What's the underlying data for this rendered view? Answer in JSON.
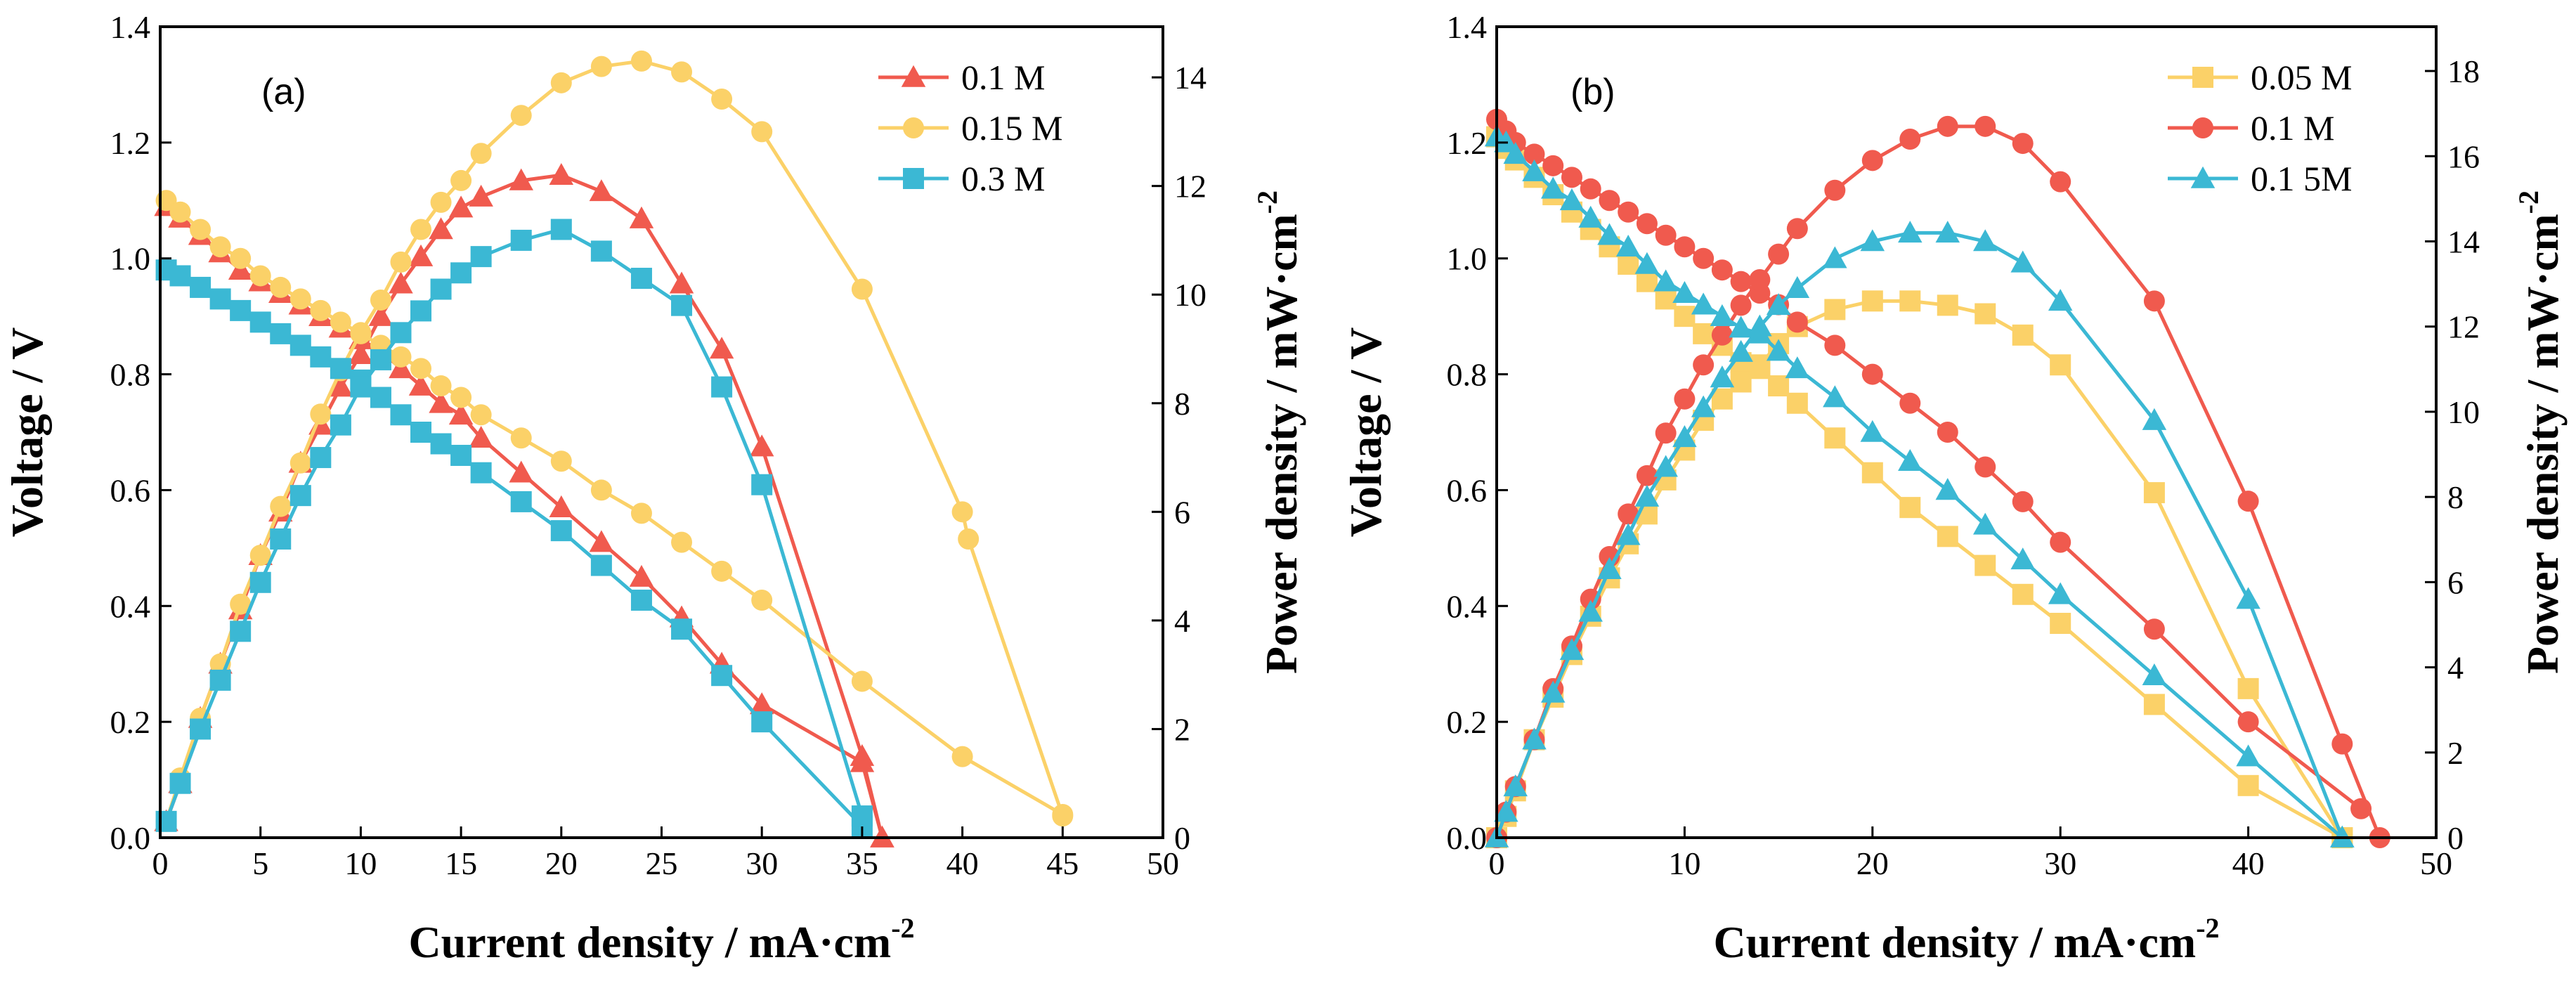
{
  "chart_data": [
    {
      "type": "line",
      "panel_label": "(a)",
      "xlabel": "Current density / mA·cm",
      "xlabel_sup": "-2",
      "ylabel": "Voltage / V",
      "y2label": "Power density / mW·cm",
      "y2label_sup": "-2",
      "xlim": [
        0,
        50
      ],
      "ylim": [
        0,
        1.4
      ],
      "y2lim": [
        0,
        14.933
      ],
      "x_ticks": [
        "0",
        "5",
        "10",
        "15",
        "20",
        "25",
        "30",
        "35",
        "40",
        "45",
        "50"
      ],
      "y_ticks": [
        "0.0",
        "0.2",
        "0.4",
        "0.6",
        "0.8",
        "1.0",
        "1.2",
        "1.4"
      ],
      "y2_ticks": [
        "0",
        "2",
        "4",
        "6",
        "8",
        "10",
        "12",
        "14"
      ],
      "grid": false,
      "legend_position": "top-right",
      "series": [
        {
          "name": "0.1 M",
          "color": "#f05a4e",
          "marker": "triangle",
          "voltage": {
            "x": [
              0.3,
              1,
              2,
              3,
              4,
              5,
              6,
              7,
              8,
              9,
              10,
              11,
              12,
              13,
              14,
              15,
              16,
              18,
              20,
              22,
              24,
              26,
              28,
              30,
              35,
              36
            ],
            "y": [
              1.09,
              1.07,
              1.04,
              1.01,
              0.98,
              0.96,
              0.94,
              0.92,
              0.9,
              0.88,
              0.86,
              0.84,
              0.81,
              0.78,
              0.75,
              0.73,
              0.69,
              0.63,
              0.57,
              0.51,
              0.45,
              0.38,
              0.3,
              0.23,
              0.13,
              0.0
            ]
          },
          "power": {
            "x": [
              0.3,
              1,
              2,
              3,
              4,
              5,
              6,
              7,
              8,
              9,
              10,
              11,
              12,
              13,
              14,
              15,
              16,
              18,
              20,
              22,
              24,
              26,
              28,
              30,
              35,
              36
            ],
            "y": [
              0.3,
              1.0,
              2.2,
              3.2,
              4.2,
              5.2,
              6.0,
              6.9,
              7.6,
              8.3,
              8.9,
              9.6,
              10.2,
              10.7,
              11.2,
              11.6,
              11.8,
              12.1,
              12.2,
              11.9,
              11.4,
              10.2,
              9.0,
              7.2,
              1.5,
              0.0
            ]
          }
        },
        {
          "name": "0.15 M",
          "color": "#fbd168",
          "marker": "circle",
          "voltage": {
            "x": [
              0.3,
              1,
              2,
              3,
              4,
              5,
              6,
              7,
              8,
              9,
              10,
              11,
              12,
              13,
              14,
              15,
              16,
              18,
              20,
              22,
              24,
              26,
              28,
              30,
              35,
              40,
              45
            ],
            "y": [
              1.1,
              1.08,
              1.05,
              1.02,
              1.0,
              0.97,
              0.95,
              0.93,
              0.91,
              0.89,
              0.87,
              0.85,
              0.83,
              0.81,
              0.78,
              0.76,
              0.73,
              0.69,
              0.65,
              0.6,
              0.56,
              0.51,
              0.46,
              0.41,
              0.27,
              0.14,
              0.04
            ]
          },
          "power": {
            "x": [
              0.3,
              1,
              2,
              3,
              4,
              5,
              6,
              7,
              8,
              9,
              10,
              11,
              12,
              13,
              14,
              15,
              16,
              18,
              20,
              22,
              24,
              26,
              28,
              30,
              35,
              40,
              40.3,
              45
            ],
            "y": [
              0.3,
              1.1,
              2.2,
              3.2,
              4.3,
              5.2,
              6.1,
              6.9,
              7.8,
              8.6,
              9.3,
              9.9,
              10.6,
              11.2,
              11.7,
              12.1,
              12.6,
              13.3,
              13.9,
              14.2,
              14.3,
              14.1,
              13.6,
              13.0,
              10.1,
              6.0,
              5.5,
              0.4
            ]
          }
        },
        {
          "name": "0.3 M",
          "color": "#3bb8d4",
          "marker": "square",
          "voltage": {
            "x": [
              0.3,
              1,
              2,
              3,
              4,
              5,
              6,
              7,
              8,
              9,
              10,
              11,
              12,
              13,
              14,
              15,
              16,
              18,
              20,
              22,
              24,
              26,
              28,
              30,
              35
            ],
            "y": [
              0.98,
              0.97,
              0.95,
              0.93,
              0.91,
              0.89,
              0.87,
              0.85,
              0.83,
              0.81,
              0.79,
              0.76,
              0.73,
              0.7,
              0.68,
              0.66,
              0.63,
              0.58,
              0.53,
              0.47,
              0.41,
              0.36,
              0.28,
              0.2,
              0.02
            ]
          },
          "power": {
            "x": [
              0.3,
              1,
              2,
              3,
              4,
              5,
              6,
              7,
              8,
              9,
              10,
              11,
              12,
              13,
              14,
              15,
              16,
              18,
              20,
              22,
              24,
              26,
              28,
              30,
              35
            ],
            "y": [
              0.3,
              1.0,
              2.0,
              2.9,
              3.8,
              4.7,
              5.5,
              6.3,
              7.0,
              7.6,
              8.3,
              8.8,
              9.3,
              9.7,
              10.1,
              10.4,
              10.7,
              11.0,
              11.2,
              10.8,
              10.3,
              9.8,
              8.3,
              6.5,
              0.4
            ]
          }
        }
      ]
    },
    {
      "type": "line",
      "panel_label": "(b)",
      "xlabel": "Current density / mA·cm",
      "xlabel_sup": "-2",
      "ylabel": "Voltage / V",
      "y2label": "Power density / mW·cm",
      "y2label_sup": "-2",
      "xlim": [
        0,
        50
      ],
      "ylim": [
        0,
        1.4
      ],
      "y2lim": [
        0,
        19.04
      ],
      "x_ticks": [
        "0",
        "10",
        "20",
        "30",
        "40",
        "50"
      ],
      "y_ticks": [
        "0.0",
        "0.2",
        "0.4",
        "0.6",
        "0.8",
        "1.0",
        "1.2",
        "1.4"
      ],
      "y2_ticks": [
        "0",
        "2",
        "4",
        "6",
        "8",
        "10",
        "12",
        "14",
        "16",
        "18"
      ],
      "grid": false,
      "legend_position": "top-right",
      "series": [
        {
          "name": "0.05 M",
          "color": "#fbd168",
          "marker": "square",
          "voltage": {
            "x": [
              0,
              0.5,
              1,
              2,
              3,
              4,
              5,
              6,
              7,
              8,
              9,
              10,
              11,
              12,
              13,
              14,
              15,
              16,
              18,
              20,
              22,
              24,
              26,
              28,
              30,
              35,
              40,
              45
            ],
            "y": [
              1.21,
              1.19,
              1.17,
              1.14,
              1.11,
              1.08,
              1.05,
              1.02,
              0.99,
              0.96,
              0.93,
              0.9,
              0.87,
              0.85,
              0.82,
              0.81,
              0.78,
              0.75,
              0.69,
              0.63,
              0.57,
              0.52,
              0.47,
              0.42,
              0.37,
              0.23,
              0.09,
              0.0
            ]
          },
          "power": {
            "x": [
              0,
              0.5,
              1,
              2,
              3,
              4,
              5,
              6,
              7,
              8,
              9,
              10,
              11,
              12,
              13,
              14,
              15,
              16,
              18,
              20,
              22,
              24,
              26,
              28,
              30,
              35,
              40,
              45
            ],
            "y": [
              0.0,
              0.5,
              1.1,
              2.3,
              3.3,
              4.3,
              5.2,
              6.1,
              6.9,
              7.6,
              8.4,
              9.1,
              9.8,
              10.3,
              10.7,
              11.1,
              11.6,
              12.0,
              12.4,
              12.6,
              12.6,
              12.5,
              12.3,
              11.8,
              11.1,
              8.1,
              3.5,
              0.0
            ]
          }
        },
        {
          "name": "0.1 M",
          "color": "#f05a4e",
          "marker": "circle",
          "voltage": {
            "x": [
              0,
              0.5,
              1,
              2,
              3,
              4,
              5,
              6,
              7,
              8,
              9,
              10,
              11,
              12,
              13,
              14,
              15,
              16,
              18,
              20,
              22,
              24,
              26,
              28,
              30,
              35,
              40,
              46
            ],
            "y": [
              1.24,
              1.22,
              1.2,
              1.18,
              1.16,
              1.14,
              1.12,
              1.1,
              1.08,
              1.06,
              1.04,
              1.02,
              1.0,
              0.98,
              0.96,
              0.94,
              0.92,
              0.89,
              0.85,
              0.8,
              0.75,
              0.7,
              0.64,
              0.58,
              0.51,
              0.36,
              0.2,
              0.05
            ]
          },
          "power": {
            "x": [
              0,
              0.5,
              1,
              2,
              3,
              4,
              5,
              6,
              7,
              8,
              9,
              10,
              11,
              12,
              13,
              14,
              15,
              16,
              18,
              20,
              22,
              24,
              26,
              28,
              30,
              35,
              40,
              45,
              47
            ],
            "y": [
              0.0,
              0.6,
              1.2,
              2.3,
              3.5,
              4.5,
              5.6,
              6.6,
              7.6,
              8.5,
              9.5,
              10.3,
              11.1,
              11.8,
              12.5,
              13.1,
              13.7,
              14.3,
              15.2,
              15.9,
              16.4,
              16.7,
              16.7,
              16.3,
              15.4,
              12.6,
              7.9,
              2.2,
              0.0
            ]
          }
        },
        {
          "name": "0.1 5M",
          "color": "#3bb8d4",
          "marker": "triangle",
          "voltage": {
            "x": [
              0,
              0.5,
              1,
              2,
              3,
              4,
              5,
              6,
              7,
              8,
              9,
              10,
              11,
              12,
              13,
              14,
              15,
              16,
              18,
              20,
              22,
              24,
              26,
              28,
              30,
              35,
              40,
              45
            ],
            "y": [
              1.21,
              1.2,
              1.18,
              1.15,
              1.12,
              1.1,
              1.07,
              1.04,
              1.02,
              0.99,
              0.96,
              0.94,
              0.92,
              0.9,
              0.88,
              0.87,
              0.84,
              0.81,
              0.76,
              0.7,
              0.65,
              0.6,
              0.54,
              0.48,
              0.42,
              0.28,
              0.14,
              0.0
            ]
          },
          "power": {
            "x": [
              0,
              0.5,
              1,
              2,
              3,
              4,
              5,
              6,
              7,
              8,
              9,
              10,
              11,
              12,
              13,
              14,
              15,
              16,
              18,
              20,
              22,
              24,
              26,
              28,
              30,
              35,
              40,
              45
            ],
            "y": [
              0.0,
              0.6,
              1.2,
              2.3,
              3.4,
              4.4,
              5.3,
              6.3,
              7.1,
              8.0,
              8.7,
              9.4,
              10.1,
              10.8,
              11.4,
              12.0,
              12.5,
              12.9,
              13.6,
              14.0,
              14.2,
              14.2,
              14.0,
              13.5,
              12.6,
              9.8,
              5.6,
              0.0
            ]
          }
        }
      ]
    }
  ]
}
